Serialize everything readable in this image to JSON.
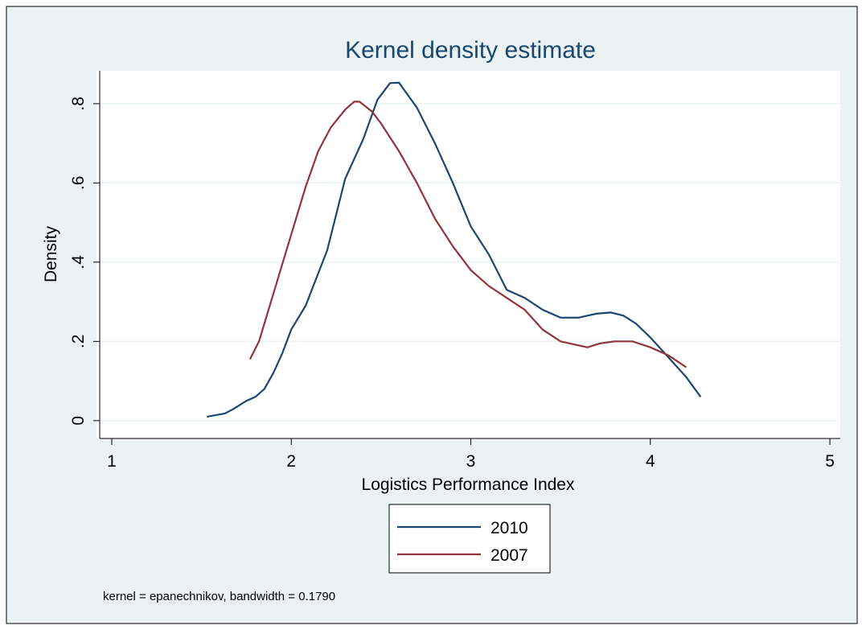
{
  "chart_data": {
    "type": "line",
    "title": "Kernel density estimate",
    "xlabel": "Logistics Performance Index",
    "ylabel": "Density",
    "note": "kernel = epanechnikov, bandwidth = 0.1790",
    "xlim": [
      0.915,
      5.058
    ],
    "ylim": [
      -0.045,
      0.883
    ],
    "xticks": [
      1,
      2,
      3,
      4,
      5
    ],
    "yticks": [
      0,
      {
        "value": 0.2,
        "label": ".2"
      },
      {
        "value": 0.4,
        "label": ".4"
      },
      {
        "value": 0.6,
        "label": ".6"
      },
      {
        "value": 0.8,
        "label": ".8"
      }
    ],
    "grid": true,
    "series": [
      {
        "name": "2010",
        "color": "#1a476f",
        "x": [
          1.53,
          1.63,
          1.68,
          1.75,
          1.8,
          1.85,
          1.9,
          1.95,
          2.0,
          2.08,
          2.2,
          2.3,
          2.4,
          2.48,
          2.55,
          2.6,
          2.7,
          2.8,
          2.9,
          3.0,
          3.1,
          3.2,
          3.3,
          3.4,
          3.5,
          3.6,
          3.7,
          3.78,
          3.85,
          3.92,
          4.0,
          4.1,
          4.2,
          4.28
        ],
        "values": [
          0.01,
          0.018,
          0.03,
          0.05,
          0.06,
          0.08,
          0.12,
          0.17,
          0.23,
          0.29,
          0.43,
          0.61,
          0.71,
          0.81,
          0.852,
          0.853,
          0.79,
          0.7,
          0.6,
          0.49,
          0.42,
          0.33,
          0.31,
          0.28,
          0.26,
          0.26,
          0.27,
          0.273,
          0.265,
          0.245,
          0.21,
          0.16,
          0.11,
          0.06
        ]
      },
      {
        "name": "2007",
        "color": "#90353b",
        "x": [
          1.77,
          1.82,
          1.9,
          2.0,
          2.08,
          2.15,
          2.22,
          2.3,
          2.35,
          2.38,
          2.45,
          2.5,
          2.6,
          2.7,
          2.8,
          2.9,
          3.0,
          3.1,
          3.2,
          3.3,
          3.4,
          3.5,
          3.6,
          3.65,
          3.72,
          3.8,
          3.9,
          4.0,
          4.1,
          4.2
        ],
        "values": [
          0.155,
          0.2,
          0.32,
          0.47,
          0.59,
          0.68,
          0.74,
          0.785,
          0.805,
          0.805,
          0.78,
          0.75,
          0.68,
          0.6,
          0.51,
          0.44,
          0.38,
          0.34,
          0.31,
          0.28,
          0.23,
          0.2,
          0.19,
          0.185,
          0.195,
          0.2,
          0.2,
          0.185,
          0.165,
          0.135
        ]
      }
    ]
  }
}
